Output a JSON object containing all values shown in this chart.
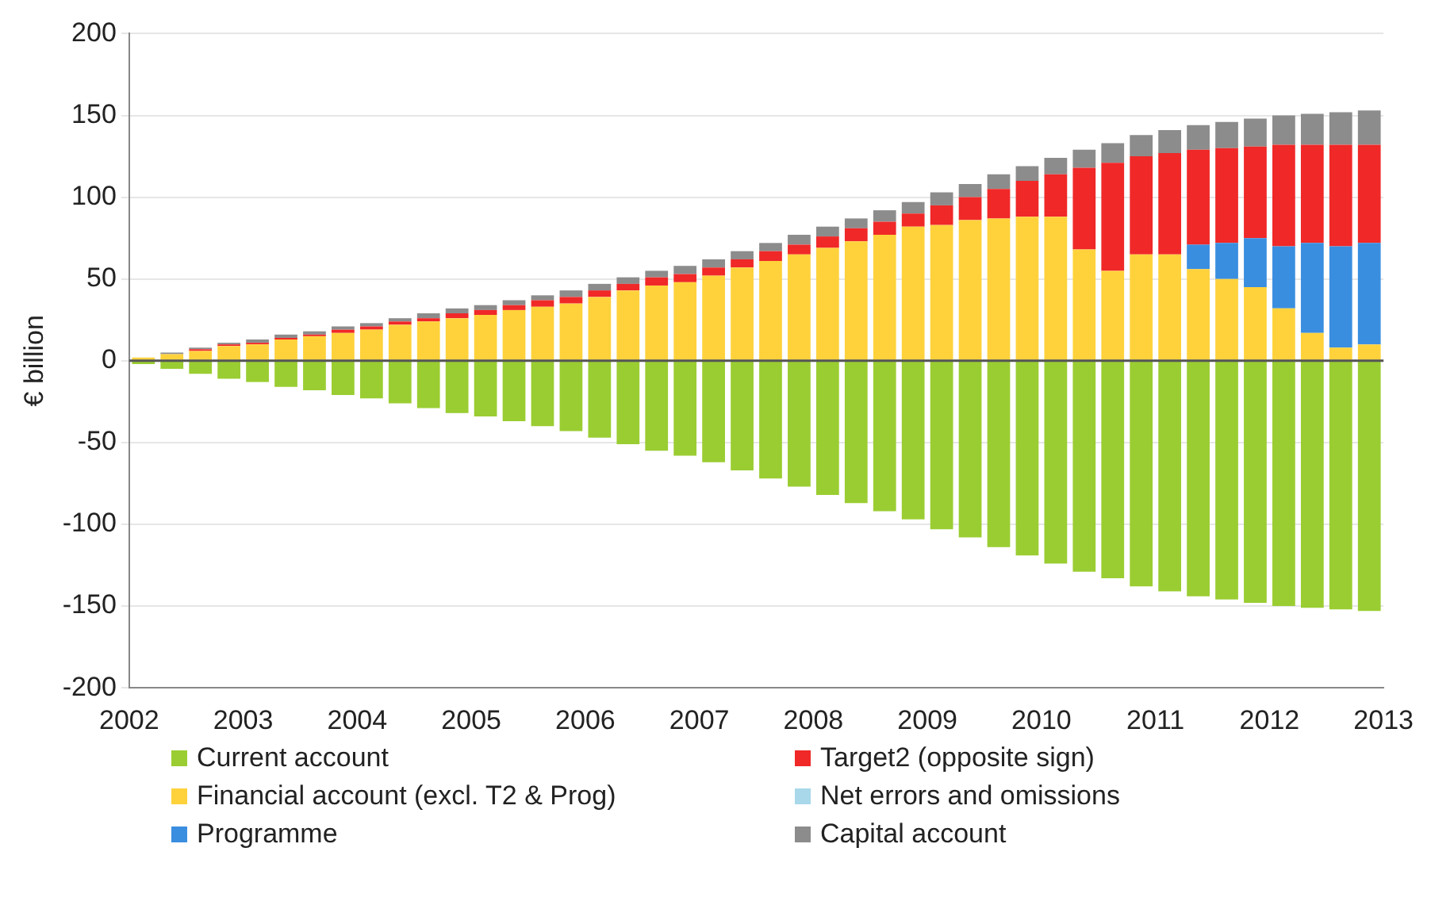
{
  "chart_data": {
    "type": "bar",
    "ylabel": "€ billion",
    "stacked": true,
    "x": [
      2002.125,
      2002.375,
      2002.625,
      2002.875,
      2003.125,
      2003.375,
      2003.625,
      2003.875,
      2004.125,
      2004.375,
      2004.625,
      2004.875,
      2005.125,
      2005.375,
      2005.625,
      2005.875,
      2006.125,
      2006.375,
      2006.625,
      2006.875,
      2007.125,
      2007.375,
      2007.625,
      2007.875,
      2008.125,
      2008.375,
      2008.625,
      2008.875,
      2009.125,
      2009.375,
      2009.625,
      2009.875,
      2010.125,
      2010.375,
      2010.625,
      2010.875,
      2011.125,
      2011.375,
      2011.625,
      2011.875,
      2012.125,
      2012.375,
      2012.625,
      2012.875
    ],
    "series": [
      {
        "name": "Current account",
        "color": "#9acd32",
        "values": [
          -2,
          -5,
          -8,
          -11,
          -13,
          -16,
          -18,
          -21,
          -23,
          -26,
          -29,
          -32,
          -34,
          -37,
          -40,
          -43,
          -47,
          -51,
          -55,
          -58,
          -62,
          -67,
          -72,
          -77,
          -82,
          -87,
          -92,
          -97,
          -103,
          -108,
          -114,
          -119,
          -124,
          -129,
          -133,
          -138,
          -141,
          -144,
          -146,
          -148,
          -150,
          -151,
          -152,
          -153
        ]
      },
      {
        "name": "Financial account (excl. T2 & Prog)",
        "color": "#ffd23c",
        "values": [
          2,
          4,
          6,
          9,
          10,
          13,
          15,
          17,
          19,
          22,
          24,
          26,
          28,
          31,
          33,
          35,
          39,
          43,
          46,
          48,
          52,
          57,
          61,
          65,
          69,
          73,
          77,
          82,
          83,
          86,
          87,
          88,
          88,
          68,
          55,
          65,
          65,
          56,
          50,
          45,
          32,
          17,
          8,
          10
        ]
      },
      {
        "name": "Programme",
        "color": "#3a8ee0",
        "values": [
          0,
          0,
          0,
          0,
          0,
          0,
          0,
          0,
          0,
          0,
          0,
          0,
          0,
          0,
          0,
          0,
          0,
          0,
          0,
          0,
          0,
          0,
          0,
          0,
          0,
          0,
          0,
          0,
          0,
          0,
          0,
          0,
          0,
          0,
          0,
          0,
          0,
          15,
          22,
          30,
          38,
          55,
          62,
          62
        ]
      },
      {
        "name": "Target2 (opposite sign)",
        "color": "#f02828",
        "values": [
          0,
          0,
          1,
          1,
          1,
          1,
          1,
          2,
          2,
          2,
          2,
          3,
          3,
          3,
          4,
          4,
          4,
          4,
          5,
          5,
          5,
          5,
          6,
          6,
          7,
          8,
          8,
          8,
          12,
          14,
          18,
          22,
          26,
          50,
          66,
          60,
          62,
          58,
          58,
          56,
          62,
          60,
          62,
          60
        ]
      },
      {
        "name": "Net errors and omissions",
        "color": "#a8d8ea",
        "values": [
          0,
          0,
          0,
          0,
          0,
          0,
          0,
          0,
          0,
          0,
          0,
          0,
          0,
          0,
          0,
          0,
          0,
          0,
          0,
          0,
          0,
          0,
          0,
          0,
          0,
          0,
          0,
          0,
          0,
          0,
          0,
          0,
          0,
          0,
          0,
          0,
          0,
          0,
          0,
          0,
          0,
          0,
          0,
          0
        ]
      },
      {
        "name": "Capital account",
        "color": "#8c8c8c",
        "values": [
          0,
          1,
          1,
          1,
          2,
          2,
          2,
          2,
          2,
          2,
          3,
          3,
          3,
          3,
          3,
          4,
          4,
          4,
          4,
          5,
          5,
          5,
          5,
          6,
          6,
          6,
          7,
          7,
          8,
          8,
          9,
          9,
          10,
          11,
          12,
          13,
          14,
          15,
          16,
          17,
          18,
          19,
          20,
          21
        ]
      }
    ],
    "xlim": [
      2002,
      2013
    ],
    "xticks": [
      2002,
      2003,
      2004,
      2005,
      2006,
      2007,
      2008,
      2009,
      2010,
      2011,
      2012,
      2013
    ],
    "ylim": [
      -200,
      200
    ],
    "yticks": [
      -200,
      -150,
      -100,
      -50,
      0,
      50,
      100,
      150,
      200
    ],
    "grid": "y",
    "legend": "bottom"
  }
}
